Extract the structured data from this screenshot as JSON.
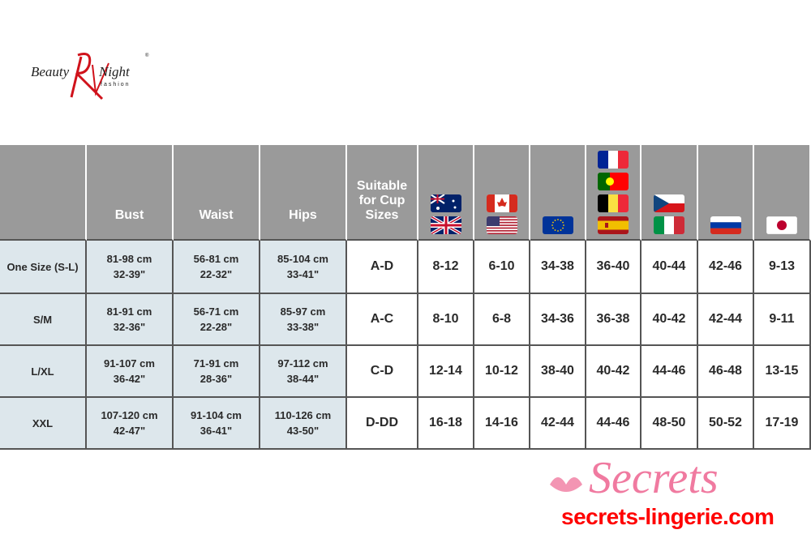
{
  "brand": {
    "logo_text": "Beauty Night",
    "logo_sub": "fashion",
    "colors": {
      "red": "#d0121b",
      "gray_header": "#9a9a9a",
      "light_blue": "#dde7ec"
    }
  },
  "table": {
    "headers": [
      "",
      "Bust",
      "Waist",
      "Hips",
      "Suitable for Cup Sizes"
    ],
    "flag_columns": [
      [
        "australia",
        "united-kingdom"
      ],
      [
        "canada",
        "united-states"
      ],
      [
        "european-union"
      ],
      [
        "france",
        "portugal",
        "belgium",
        "spain"
      ],
      [
        "czech-republic",
        "italy"
      ],
      [
        "russia"
      ],
      [
        "japan"
      ]
    ],
    "rows": [
      {
        "size": "One Size (S-L)",
        "bust": [
          "81-98 cm",
          "32-39\""
        ],
        "waist": [
          "56-81 cm",
          "22-32\""
        ],
        "hips": [
          "85-104 cm",
          "33-41\""
        ],
        "cup": "A-D",
        "conv": [
          "8-12",
          "6-10",
          "34-38",
          "36-40",
          "40-44",
          "42-46",
          "9-13"
        ]
      },
      {
        "size": "S/M",
        "bust": [
          "81-91 cm",
          "32-36\""
        ],
        "waist": [
          "56-71 cm",
          "22-28\""
        ],
        "hips": [
          "85-97 cm",
          "33-38\""
        ],
        "cup": "A-C",
        "conv": [
          "8-10",
          "6-8",
          "34-36",
          "36-38",
          "40-42",
          "42-44",
          "9-11"
        ]
      },
      {
        "size": "L/XL",
        "bust": [
          "91-107 cm",
          "36-42\""
        ],
        "waist": [
          "71-91 cm",
          "28-36\""
        ],
        "hips": [
          "97-112 cm",
          "38-44\""
        ],
        "cup": "C-D",
        "conv": [
          "12-14",
          "10-12",
          "38-40",
          "40-42",
          "44-46",
          "46-48",
          "13-15"
        ]
      },
      {
        "size": "XXL",
        "bust": [
          "107-120 cm",
          "42-47\""
        ],
        "waist": [
          "91-104 cm",
          "36-41\""
        ],
        "hips": [
          "110-126 cm",
          "43-50\""
        ],
        "cup": "D-DD",
        "conv": [
          "16-18",
          "14-16",
          "42-44",
          "44-46",
          "48-50",
          "50-52",
          "17-19"
        ]
      }
    ]
  },
  "watermark": {
    "script": "Secrets",
    "site": "secrets-lingerie.com",
    "color": "#f07aa0",
    "site_color": "#ff0000"
  }
}
